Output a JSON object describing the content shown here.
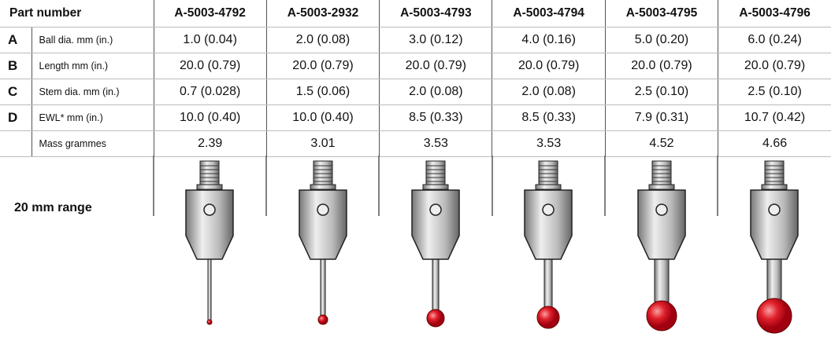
{
  "header": {
    "part_number_label": "Part number",
    "parts": [
      "A-5003-4792",
      "A-5003-2932",
      "A-5003-4793",
      "A-5003-4794",
      "A-5003-4795",
      "A-5003-4796"
    ]
  },
  "rows": [
    {
      "letter": "A",
      "label": "Ball dia. mm (in.)",
      "values": [
        "1.0 (0.04)",
        "2.0 (0.08)",
        "3.0 (0.12)",
        "4.0 (0.16)",
        "5.0 (0.20)",
        "6.0 (0.24)"
      ]
    },
    {
      "letter": "B",
      "label": "Length mm (in.)",
      "values": [
        "20.0 (0.79)",
        "20.0 (0.79)",
        "20.0 (0.79)",
        "20.0 (0.79)",
        "20.0 (0.79)",
        "20.0 (0.79)"
      ]
    },
    {
      "letter": "C",
      "label": "Stem dia. mm (in.)",
      "values": [
        "0.7 (0.028)",
        "1.5 (0.06)",
        "2.0 (0.08)",
        "2.0 (0.08)",
        "2.5 (0.10)",
        "2.5 (0.10)"
      ]
    },
    {
      "letter": "D",
      "label": "EWL* mm (in.)",
      "values": [
        "10.0 (0.40)",
        "10.0 (0.40)",
        "8.5 (0.33)",
        "8.5 (0.33)",
        "7.9 (0.31)",
        "10.7 (0.42)"
      ]
    },
    {
      "label": "Mass grammes",
      "values": [
        "2.39",
        "3.01",
        "3.53",
        "3.53",
        "4.52",
        "4.66"
      ]
    }
  ],
  "range_label": "20 mm range"
}
